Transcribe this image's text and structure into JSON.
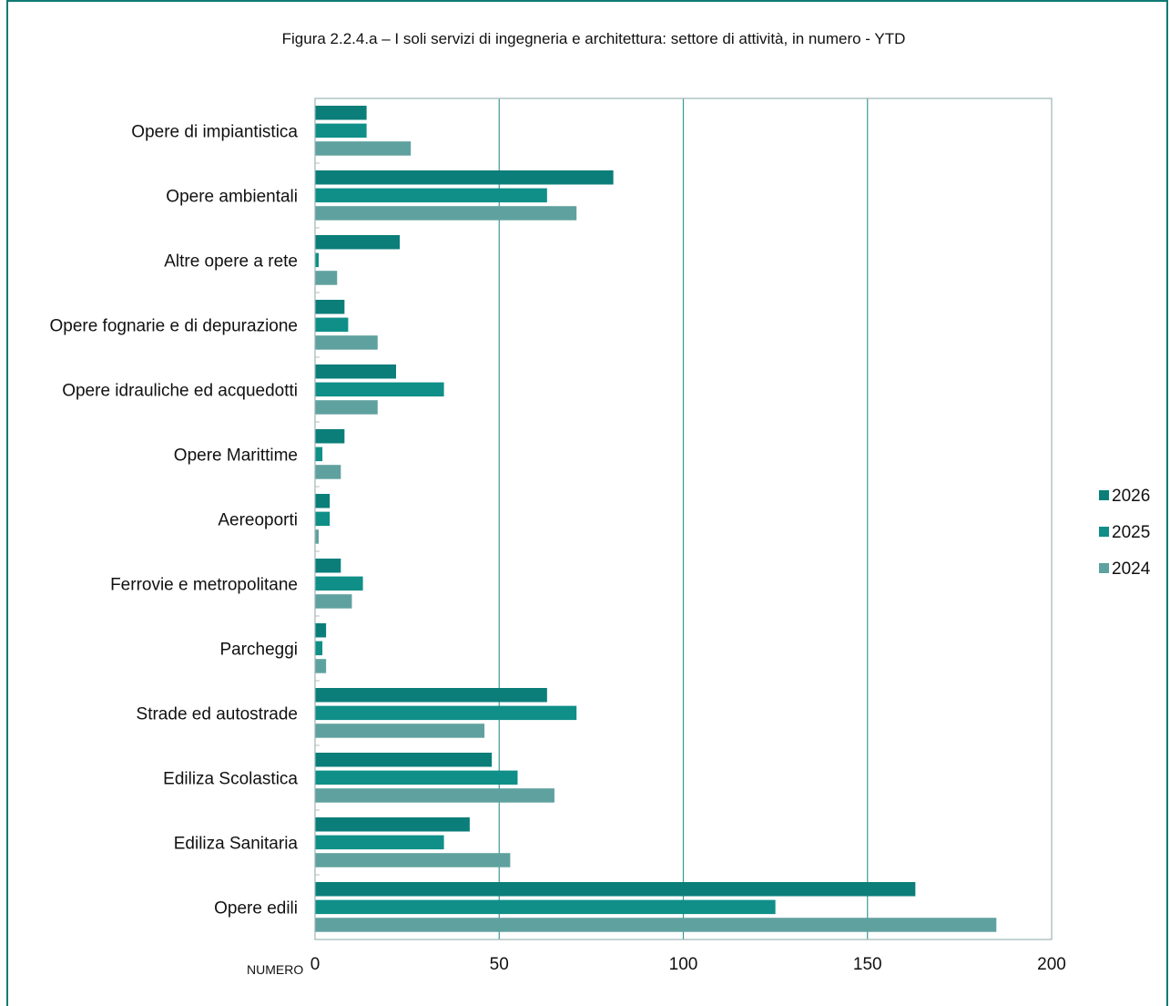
{
  "chart_data": {
    "type": "bar",
    "orientation": "horizontal",
    "title": "Figura 2.2.4.a – I soli servizi di ingegneria e architettura: settore di attività, in numero - YTD",
    "xlabel": "NUMERO",
    "xlim": [
      0,
      200
    ],
    "xticks": [
      "0",
      "50",
      "100",
      "150",
      "200"
    ],
    "grid": "vertical",
    "legend_position": "right",
    "categories": [
      "Opere di impiantistica",
      "Opere ambientali",
      "Altre opere a rete",
      "Opere fognarie e di depurazione",
      "Opere idrauliche ed acquedotti",
      "Opere Marittime",
      "Aereoporti",
      "Ferrovie e metropolitane",
      "Parcheggi",
      "Strade ed autostrade",
      "Ediliza Scolastica",
      "Ediliza Sanitaria",
      "Opere edili"
    ],
    "series": [
      {
        "name": "2026",
        "color": "#0b7e7a",
        "values": [
          14,
          81,
          23,
          8,
          22,
          8,
          4,
          7,
          3,
          63,
          48,
          42,
          163
        ]
      },
      {
        "name": "2025",
        "color": "#0f8f88",
        "values": [
          14,
          63,
          1,
          9,
          35,
          2,
          4,
          13,
          2,
          71,
          55,
          35,
          125
        ]
      },
      {
        "name": "2024",
        "color": "#5fa19e",
        "values": [
          26,
          71,
          6,
          17,
          17,
          7,
          1,
          10,
          3,
          46,
          65,
          53,
          185
        ]
      }
    ]
  }
}
